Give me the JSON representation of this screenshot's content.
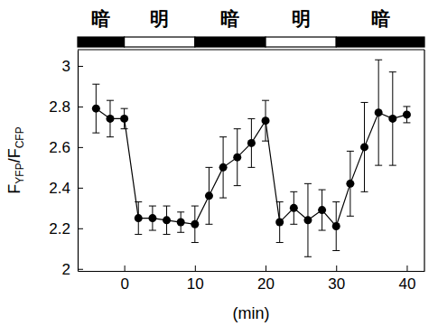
{
  "chart_data": {
    "type": "line",
    "xlabel": "(min)",
    "ylabel": [
      "F",
      "YFP",
      "/F",
      "CFP"
    ],
    "x": [
      -4,
      -2,
      0,
      2,
      4,
      6,
      8,
      10,
      12,
      14,
      16,
      18,
      20,
      22,
      24,
      26,
      28,
      30,
      32,
      34,
      36,
      38,
      40
    ],
    "series": [
      {
        "color": "#000000",
        "marker": "circle",
        "line_style": "solid",
        "values": [
          2.79,
          2.74,
          2.74,
          2.25,
          2.25,
          2.24,
          2.23,
          2.22,
          2.36,
          2.5,
          2.55,
          2.62,
          2.73,
          2.23,
          2.3,
          2.24,
          2.29,
          2.21,
          2.42,
          2.6,
          2.77,
          2.74,
          2.76
        ],
        "errors": [
          0.12,
          0.09,
          0.05,
          0.08,
          0.06,
          0.07,
          0.05,
          0.09,
          0.14,
          0.15,
          0.14,
          0.12,
          0.1,
          0.1,
          0.08,
          0.18,
          0.1,
          0.12,
          0.16,
          0.22,
          0.26,
          0.23,
          0.04
        ]
      }
    ],
    "periods": [
      {
        "label": "暗",
        "from": -6.6,
        "to": 0,
        "color": "#000000"
      },
      {
        "label": "明",
        "from": 0,
        "to": 10,
        "color": "#ffffff"
      },
      {
        "label": "暗",
        "from": 10,
        "to": 20,
        "color": "#000000"
      },
      {
        "label": "明",
        "from": 20,
        "to": 30,
        "color": "#ffffff"
      },
      {
        "label": "暗",
        "from": 30,
        "to": 42.5,
        "color": "#000000"
      }
    ],
    "xlim": [
      -6.6,
      42.5
    ],
    "xticks": [
      0,
      10,
      20,
      30,
      40
    ],
    "ylim": [
      1.99,
      3.08
    ],
    "yticks": [
      2,
      2.2,
      2.4,
      2.6,
      2.8,
      3
    ]
  }
}
